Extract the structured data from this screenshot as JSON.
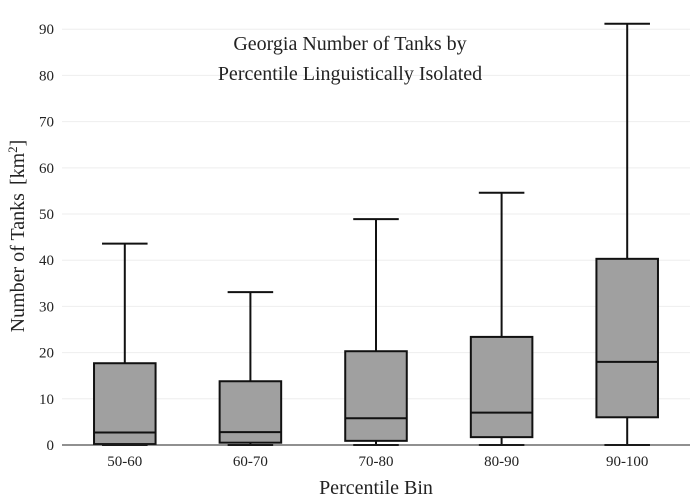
{
  "chart_data": {
    "type": "box",
    "title_lines": [
      "Georgia Number of Tanks by",
      "Percentile Linguistically Isolated"
    ],
    "xlabel": "Percentile Bin",
    "ylabel": "Number of Tanks",
    "ylabel_unit_base": "km",
    "ylabel_unit_exp": "2",
    "ylim": [
      0,
      92
    ],
    "yticks": [
      0,
      10,
      20,
      30,
      40,
      50,
      60,
      70,
      80,
      90
    ],
    "grid": true,
    "categories": [
      "50-60",
      "60-70",
      "70-80",
      "80-90",
      "90-100"
    ],
    "boxes": [
      {
        "category": "50-60",
        "min": 0,
        "q1": 0.2,
        "median": 2.7,
        "q3": 17.7,
        "max": 43.6
      },
      {
        "category": "60-70",
        "min": 0,
        "q1": 0.5,
        "median": 2.8,
        "q3": 13.8,
        "max": 33.1
      },
      {
        "category": "70-80",
        "min": 0,
        "q1": 0.9,
        "median": 5.8,
        "q3": 20.3,
        "max": 48.9
      },
      {
        "category": "80-90",
        "min": 0,
        "q1": 1.7,
        "median": 7.0,
        "q3": 23.4,
        "max": 54.6
      },
      {
        "category": "90-100",
        "min": 0,
        "q1": 6.0,
        "median": 18.0,
        "q3": 40.3,
        "max": 91.2
      }
    ],
    "colors": {
      "box_fill": "#a0a0a0",
      "box_line": "#111111",
      "grid": "#eeeeee"
    }
  }
}
